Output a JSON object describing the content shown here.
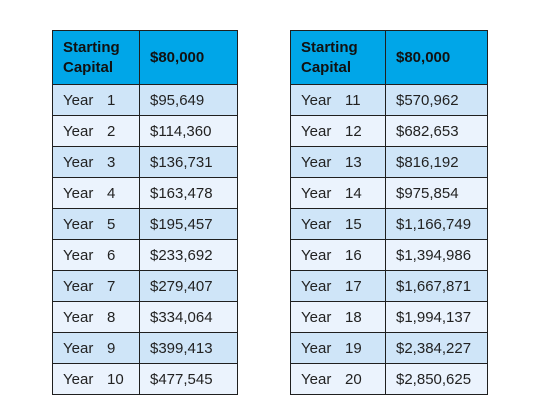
{
  "left_table": {
    "header_label": "Starting Capital",
    "header_value": "$80,000",
    "rows": [
      {
        "word": "Year",
        "num": "1",
        "value": "$95,649"
      },
      {
        "word": "Year",
        "num": "2",
        "value": "$114,360"
      },
      {
        "word": "Year",
        "num": "3",
        "value": "$136,731"
      },
      {
        "word": "Year",
        "num": "4",
        "value": "$163,478"
      },
      {
        "word": "Year",
        "num": "5",
        "value": "$195,457"
      },
      {
        "word": "Year",
        "num": "6",
        "value": "$233,692"
      },
      {
        "word": "Year",
        "num": "7",
        "value": "$279,407"
      },
      {
        "word": "Year",
        "num": "8",
        "value": "$334,064"
      },
      {
        "word": "Year",
        "num": "9",
        "value": "$399,413"
      },
      {
        "word": "Year",
        "num": "10",
        "value": "$477,545"
      }
    ]
  },
  "right_table": {
    "header_label": "Starting Capital",
    "header_value": "$80,000",
    "rows": [
      {
        "word": "Year",
        "num": "11",
        "value": "$570,962"
      },
      {
        "word": "Year",
        "num": "12",
        "value": "$682,653"
      },
      {
        "word": "Year",
        "num": "13",
        "value": "$816,192"
      },
      {
        "word": "Year",
        "num": "14",
        "value": "$975,854"
      },
      {
        "word": "Year",
        "num": "15",
        "value": "$1,166,749"
      },
      {
        "word": "Year",
        "num": "16",
        "value": "$1,394,986"
      },
      {
        "word": "Year",
        "num": "17",
        "value": "$1,667,871"
      },
      {
        "word": "Year",
        "num": "18",
        "value": "$1,994,137"
      },
      {
        "word": "Year",
        "num": "19",
        "value": "$2,384,227"
      },
      {
        "word": "Year",
        "num": "20",
        "value": "$2,850,625"
      }
    ]
  },
  "colors": {
    "header_bg": "#00a6e8",
    "row_odd": "#cfe5f8",
    "row_even": "#ebf3fd",
    "border": "#1f1f1f"
  }
}
